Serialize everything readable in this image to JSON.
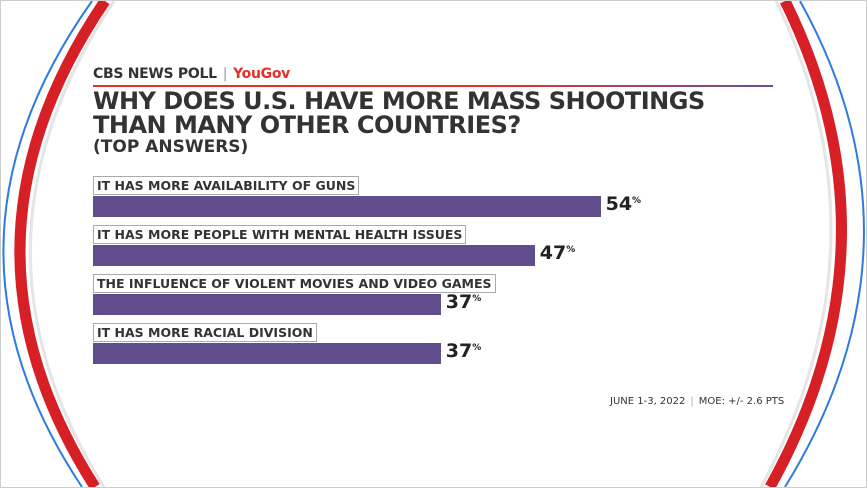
{
  "brand": {
    "network": "CBS NEWS POLL",
    "partner": "YouGov",
    "separator": "|"
  },
  "title_line1": "WHY DOES U.S. HAVE MORE MASS SHOOTINGS",
  "title_line2": "THAN MANY OTHER COUNTRIES?",
  "subtitle": "(TOP ANSWERS)",
  "colors": {
    "bar": "#5f4e8b",
    "accent_red": "#e0312b",
    "arc_blue": "#2f7be0"
  },
  "chart_data": {
    "type": "bar",
    "orientation": "horizontal",
    "categories": [
      "IT HAS MORE AVAILABILITY OF GUNS",
      "IT HAS MORE PEOPLE WITH MENTAL HEALTH ISSUES",
      "THE INFLUENCE OF VIOLENT MOVIES AND VIDEO GAMES",
      "IT HAS MORE RACIAL DIVISION"
    ],
    "values": [
      54,
      47,
      37,
      37
    ],
    "value_labels": [
      "54",
      "47",
      "37",
      "37"
    ],
    "unit": "%"
  },
  "footer": {
    "date": "JUNE 1-3, 2022",
    "moe": "MOE: +/- 2.6 PTS"
  }
}
